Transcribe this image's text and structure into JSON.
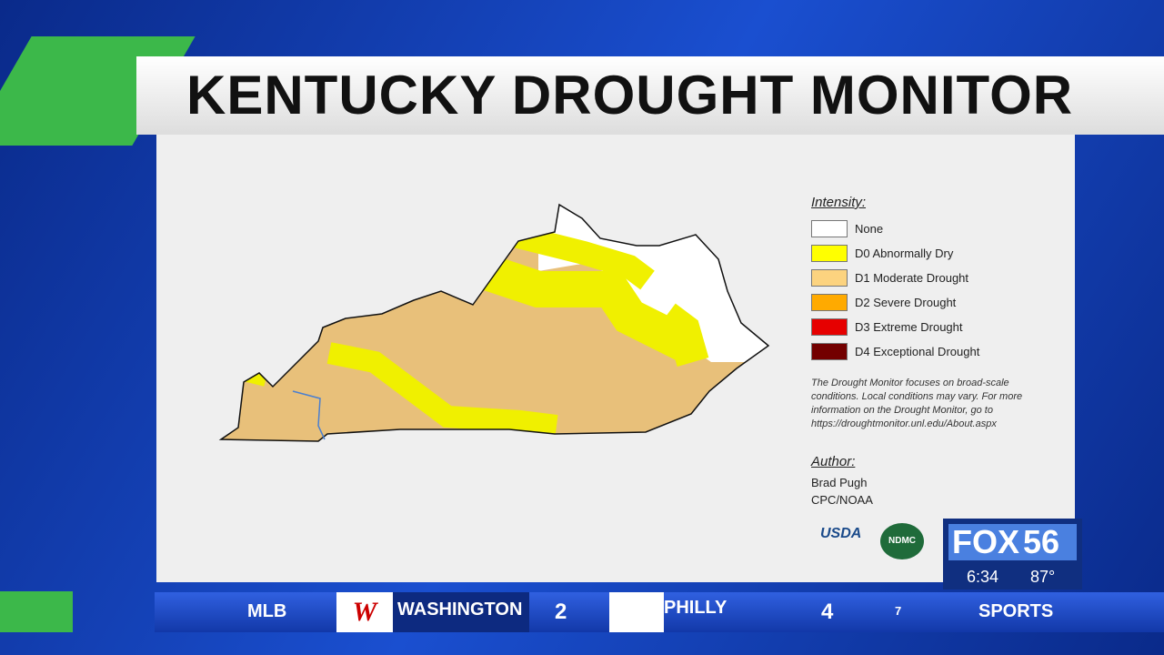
{
  "header": {
    "title": "KENTUCKY DROUGHT MONITOR"
  },
  "legend": {
    "title": "Intensity:",
    "items": [
      {
        "label": "None",
        "color": "#ffffff"
      },
      {
        "label": "D0 Abnormally Dry",
        "color": "#ffff00"
      },
      {
        "label": "D1 Moderate Drought",
        "color": "#fcd37f"
      },
      {
        "label": "D2 Severe Drought",
        "color": "#ffaa00"
      },
      {
        "label": "D3 Extreme Drought",
        "color": "#e60000"
      },
      {
        "label": "D4 Exceptional Drought",
        "color": "#730000"
      }
    ]
  },
  "note": [
    "The Drought Monitor focuses on broad-scale",
    "conditions. Local conditions may vary. For more",
    "information on the Drought Monitor, go to",
    "https://droughtmonitor.unl.edu/About.aspx"
  ],
  "author": {
    "title": "Author:",
    "name": "Brad Pugh",
    "org": "CPC/NOAA"
  },
  "logos": {
    "usda": "USDA",
    "ndmc": "NDMC"
  },
  "station": {
    "name": "FOX",
    "number": "56",
    "time": "6:34",
    "temperature": "87°"
  },
  "ticker": {
    "league": "MLB",
    "team1": "WASHINGTON",
    "score1": "2",
    "team2": "PHILLY",
    "score2": "4",
    "inning": "7",
    "section": "SPORTS"
  }
}
